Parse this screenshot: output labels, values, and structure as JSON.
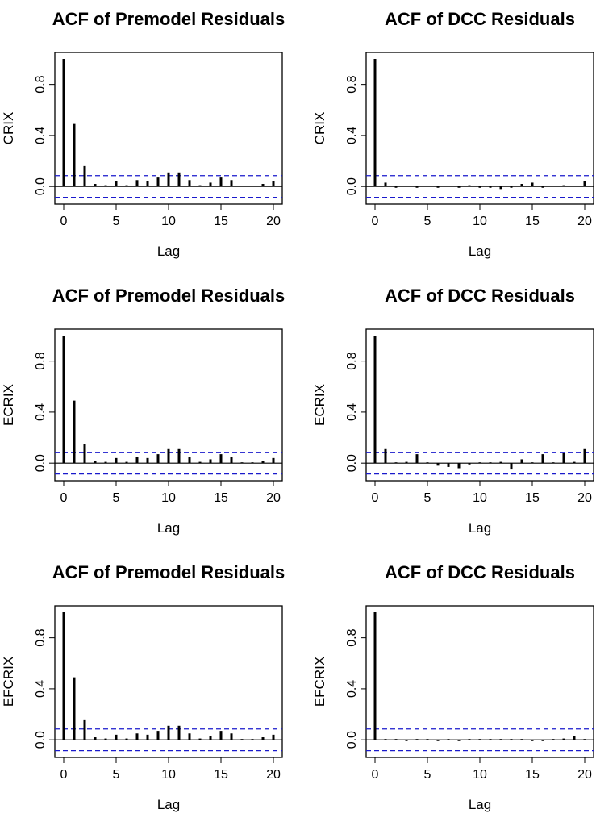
{
  "chart_data": [
    {
      "type": "bar",
      "title": "ACF of Premodel Residuals",
      "xlabel": "Lag",
      "ylabel": "CRIX",
      "xlim": [
        0,
        20
      ],
      "ylim": [
        -0.1,
        1.0
      ],
      "xticks": [
        0,
        5,
        10,
        15,
        20
      ],
      "yticks": [
        0.0,
        0.4,
        0.8
      ],
      "ci_bound": 0.085,
      "grid": false,
      "lag": [
        0,
        1,
        2,
        3,
        4,
        5,
        6,
        7,
        8,
        9,
        10,
        11,
        12,
        13,
        14,
        15,
        16,
        17,
        18,
        19,
        20
      ],
      "values": [
        1.0,
        0.49,
        0.16,
        0.02,
        0.01,
        0.04,
        0.01,
        0.05,
        0.04,
        0.07,
        0.11,
        0.11,
        0.05,
        0.01,
        0.03,
        0.07,
        0.05,
        0.0,
        0.0,
        0.02,
        0.04
      ]
    },
    {
      "type": "bar",
      "title": "ACF of DCC Residuals",
      "xlabel": "Lag",
      "ylabel": "CRIX",
      "xlim": [
        0,
        20
      ],
      "ylim": [
        -0.1,
        1.0
      ],
      "xticks": [
        0,
        5,
        10,
        15,
        20
      ],
      "yticks": [
        0.0,
        0.4,
        0.8
      ],
      "ci_bound": 0.085,
      "grid": false,
      "lag": [
        0,
        1,
        2,
        3,
        4,
        5,
        6,
        7,
        8,
        9,
        10,
        11,
        12,
        13,
        14,
        15,
        16,
        17,
        18,
        19,
        20
      ],
      "values": [
        1.0,
        0.03,
        -0.01,
        0.0,
        -0.01,
        0.0,
        -0.01,
        0.0,
        -0.01,
        0.01,
        -0.01,
        -0.01,
        -0.02,
        -0.01,
        0.02,
        0.03,
        -0.01,
        0.0,
        0.01,
        0.0,
        0.04
      ]
    },
    {
      "type": "bar",
      "title": "ACF of Premodel Residuals",
      "xlabel": "Lag",
      "ylabel": "ECRIX",
      "xlim": [
        0,
        20
      ],
      "ylim": [
        -0.1,
        1.0
      ],
      "xticks": [
        0,
        5,
        10,
        15,
        20
      ],
      "yticks": [
        0.0,
        0.4,
        0.8
      ],
      "ci_bound": 0.085,
      "grid": false,
      "lag": [
        0,
        1,
        2,
        3,
        4,
        5,
        6,
        7,
        8,
        9,
        10,
        11,
        12,
        13,
        14,
        15,
        16,
        17,
        18,
        19,
        20
      ],
      "values": [
        1.0,
        0.49,
        0.15,
        0.02,
        0.01,
        0.04,
        0.01,
        0.05,
        0.04,
        0.07,
        0.11,
        0.11,
        0.05,
        0.01,
        0.03,
        0.07,
        0.05,
        0.0,
        0.0,
        0.02,
        0.04
      ]
    },
    {
      "type": "bar",
      "title": "ACF of DCC Residuals",
      "xlabel": "Lag",
      "ylabel": "ECRIX",
      "xlim": [
        0,
        20
      ],
      "ylim": [
        -0.1,
        1.0
      ],
      "xticks": [
        0,
        5,
        10,
        15,
        20
      ],
      "yticks": [
        0.0,
        0.4,
        0.8
      ],
      "ci_bound": 0.085,
      "grid": false,
      "lag": [
        0,
        1,
        2,
        3,
        4,
        5,
        6,
        7,
        8,
        9,
        10,
        11,
        12,
        13,
        14,
        15,
        16,
        17,
        18,
        19,
        20
      ],
      "values": [
        1.0,
        0.11,
        0.0,
        0.01,
        0.07,
        0.0,
        -0.02,
        -0.03,
        -0.04,
        -0.01,
        0.0,
        0.0,
        0.01,
        -0.05,
        0.03,
        0.0,
        0.07,
        0.0,
        0.08,
        0.01,
        0.11
      ]
    },
    {
      "type": "bar",
      "title": "ACF of Premodel Residuals",
      "xlabel": "Lag",
      "ylabel": "EFCRIX",
      "xlim": [
        0,
        20
      ],
      "ylim": [
        -0.1,
        1.0
      ],
      "xticks": [
        0,
        5,
        10,
        15,
        20
      ],
      "yticks": [
        0.0,
        0.4,
        0.8
      ],
      "ci_bound": 0.085,
      "grid": false,
      "lag": [
        0,
        1,
        2,
        3,
        4,
        5,
        6,
        7,
        8,
        9,
        10,
        11,
        12,
        13,
        14,
        15,
        16,
        17,
        18,
        19,
        20
      ],
      "values": [
        1.0,
        0.49,
        0.16,
        0.02,
        0.01,
        0.04,
        0.01,
        0.05,
        0.04,
        0.07,
        0.11,
        0.11,
        0.05,
        0.01,
        0.03,
        0.07,
        0.05,
        0.0,
        0.0,
        0.02,
        0.04
      ]
    },
    {
      "type": "bar",
      "title": "ACF of DCC Residuals",
      "xlabel": "Lag",
      "ylabel": "EFCRIX",
      "xlim": [
        0,
        20
      ],
      "ylim": [
        -0.1,
        1.0
      ],
      "xticks": [
        0,
        5,
        10,
        15,
        20
      ],
      "yticks": [
        0.0,
        0.4,
        0.8
      ],
      "ci_bound": 0.085,
      "grid": false,
      "lag": [
        0,
        1,
        2,
        3,
        4,
        5,
        6,
        7,
        8,
        9,
        10,
        11,
        12,
        13,
        14,
        15,
        16,
        17,
        18,
        19,
        20
      ],
      "values": [
        1.0,
        0.0,
        0.0,
        -0.01,
        0.0,
        0.0,
        -0.01,
        0.0,
        -0.01,
        0.0,
        0.0,
        0.0,
        0.0,
        0.0,
        0.0,
        -0.01,
        -0.01,
        0.0,
        0.01,
        0.03,
        0.0
      ]
    }
  ],
  "colors": {
    "ci_line": "#1a1acc",
    "bars": "#000000",
    "axis": "#000000"
  }
}
